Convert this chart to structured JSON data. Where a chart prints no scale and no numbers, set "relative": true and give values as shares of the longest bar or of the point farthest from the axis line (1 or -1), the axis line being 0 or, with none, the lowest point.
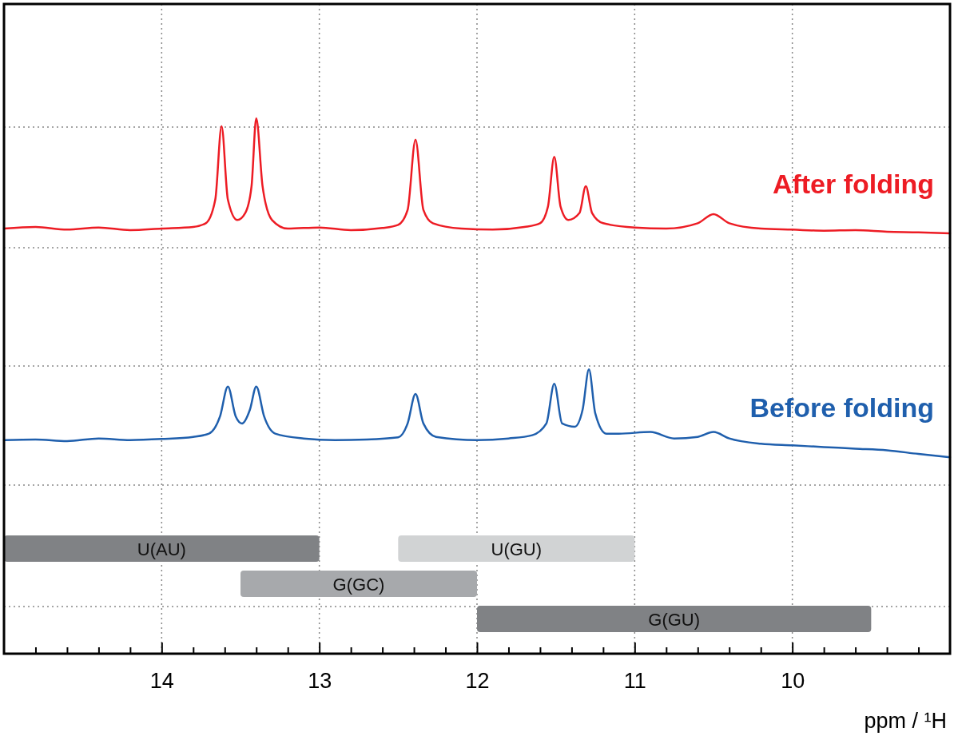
{
  "chart_data": {
    "type": "line",
    "xlabel": "ppm / ¹H",
    "relative": true,
    "grid": true,
    "xlim": [
      15,
      9
    ],
    "xticks": [
      {
        "value": 14.8,
        "label": null
      },
      {
        "value": 14.6,
        "label": null
      },
      {
        "value": 14.4,
        "label": null
      },
      {
        "value": 14.2,
        "label": null
      },
      14,
      {
        "value": 13.8,
        "label": null
      },
      {
        "value": 13.6,
        "label": null
      },
      {
        "value": 13.4,
        "label": null
      },
      {
        "value": 13.2,
        "label": null
      },
      13,
      {
        "value": 12.8,
        "label": null
      },
      {
        "value": 12.6,
        "label": null
      },
      {
        "value": 12.4,
        "label": null
      },
      {
        "value": 12.2,
        "label": null
      },
      12,
      {
        "value": 11.8,
        "label": null
      },
      {
        "value": 11.6,
        "label": null
      },
      {
        "value": 11.4,
        "label": null
      },
      {
        "value": 11.2,
        "label": null
      },
      11,
      {
        "value": 10.8,
        "label": null
      },
      {
        "value": 10.6,
        "label": null
      },
      {
        "value": 10.4,
        "label": null
      },
      {
        "value": 10.2,
        "label": null
      },
      10,
      {
        "value": 9.8,
        "label": null
      },
      {
        "value": 9.6,
        "label": null
      },
      {
        "value": 9.4,
        "label": null
      },
      {
        "value": 9.2,
        "label": null
      }
    ],
    "series": [
      {
        "name": "After folding",
        "color": "#ed1c24",
        "x": [
          15,
          14.8,
          14.6,
          14.4,
          14.2,
          14.0,
          13.8,
          13.72,
          13.66,
          13.62,
          13.58,
          13.52,
          13.47,
          13.43,
          13.4,
          13.36,
          13.3,
          13.2,
          13.0,
          12.8,
          12.6,
          12.5,
          12.44,
          12.39,
          12.34,
          12.28,
          12.1,
          11.9,
          11.7,
          11.6,
          11.55,
          11.51,
          11.47,
          11.42,
          11.35,
          11.31,
          11.27,
          11.2,
          11.0,
          10.8,
          10.6,
          10.5,
          10.4,
          10.2,
          10.0,
          9.8,
          9.6,
          9.4,
          9.2,
          9.0
        ],
        "values": [
          0.794,
          0.797,
          0.792,
          0.796,
          0.791,
          0.794,
          0.797,
          0.804,
          0.848,
          0.985,
          0.848,
          0.81,
          0.823,
          0.873,
          1.0,
          0.873,
          0.81,
          0.794,
          0.796,
          0.791,
          0.795,
          0.801,
          0.829,
          0.96,
          0.829,
          0.804,
          0.794,
          0.792,
          0.797,
          0.804,
          0.835,
          0.928,
          0.835,
          0.81,
          0.823,
          0.873,
          0.823,
          0.804,
          0.796,
          0.794,
          0.804,
          0.821,
          0.804,
          0.794,
          0.792,
          0.79,
          0.791,
          0.788,
          0.787,
          0.785
        ]
      },
      {
        "name": "Before folding",
        "color": "#1f5fad",
        "x": [
          15,
          14.8,
          14.6,
          14.4,
          14.2,
          14.0,
          13.8,
          13.7,
          13.63,
          13.58,
          13.53,
          13.49,
          13.44,
          13.4,
          13.35,
          13.28,
          13.1,
          12.9,
          12.7,
          12.5,
          12.44,
          12.39,
          12.34,
          12.26,
          12.0,
          11.8,
          11.65,
          11.56,
          11.51,
          11.46,
          11.38,
          11.33,
          11.29,
          11.25,
          11.18,
          11.1,
          10.9,
          10.75,
          10.6,
          10.5,
          10.4,
          10.2,
          10.0,
          9.8,
          9.6,
          9.4,
          9.2,
          9.0
        ],
        "values": [
          0.399,
          0.4,
          0.397,
          0.402,
          0.399,
          0.401,
          0.405,
          0.411,
          0.443,
          0.499,
          0.443,
          0.43,
          0.456,
          0.499,
          0.443,
          0.411,
          0.402,
          0.399,
          0.4,
          0.404,
          0.43,
          0.485,
          0.43,
          0.405,
          0.399,
          0.402,
          0.408,
          0.43,
          0.504,
          0.43,
          0.424,
          0.456,
          0.531,
          0.449,
          0.411,
          0.411,
          0.414,
          0.402,
          0.405,
          0.414,
          0.402,
          0.392,
          0.389,
          0.386,
          0.383,
          0.38,
          0.373,
          0.367
        ]
      }
    ],
    "bands": [
      {
        "axis": "x",
        "from": 15,
        "to": 13,
        "label": "U(AU)",
        "color": "#808285"
      },
      {
        "axis": "x",
        "from": 13.5,
        "to": 12,
        "label": "G(GC)",
        "color": "#a7a9ac"
      },
      {
        "axis": "x",
        "from": 12.5,
        "to": 11,
        "label": "U(GU)",
        "color": "#d1d3d4"
      },
      {
        "axis": "x",
        "from": 12,
        "to": 9.5,
        "label": "G(GU)",
        "color": "#808285"
      }
    ]
  }
}
